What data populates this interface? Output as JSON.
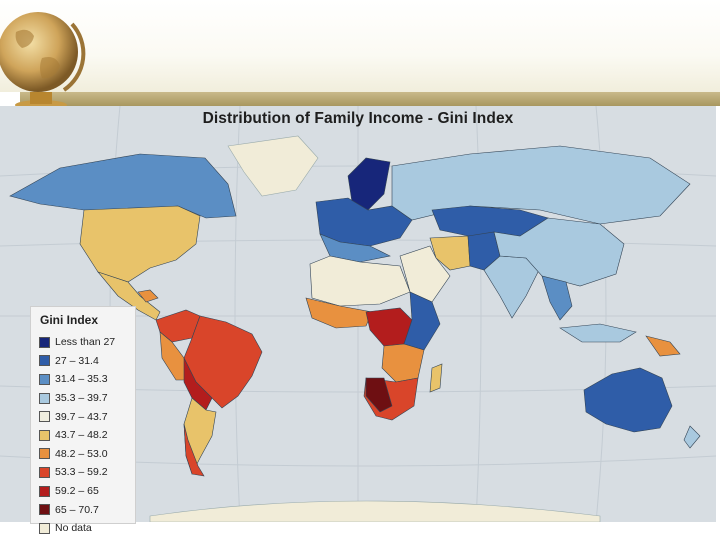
{
  "map": {
    "title": "Distribution of Family Income - Gini Index",
    "ocean_color": "#d7dde2",
    "land_no_data_color": "#f1ecd8"
  },
  "legend": {
    "title": "Gini Index",
    "items": [
      {
        "label": "Less than 27",
        "color": "#17267a"
      },
      {
        "label": "27 – 31.4",
        "color": "#2f5da8"
      },
      {
        "label": "31.4 – 35.3",
        "color": "#5b8ec4"
      },
      {
        "label": "35.3 – 39.7",
        "color": "#a9c9df"
      },
      {
        "label": "39.7 – 43.7",
        "color": "#f0eedf"
      },
      {
        "label": "43.7 – 48.2",
        "color": "#e8c36a"
      },
      {
        "label": "48.2 – 53.0",
        "color": "#e8913f"
      },
      {
        "label": "53.3 – 59.2",
        "color": "#d9452a"
      },
      {
        "label": "59.2 – 65",
        "color": "#b31d1d"
      },
      {
        "label": "65 – 70.7",
        "color": "#6e0f12"
      },
      {
        "label": "No data",
        "color": "#f1ecd8"
      }
    ]
  }
}
